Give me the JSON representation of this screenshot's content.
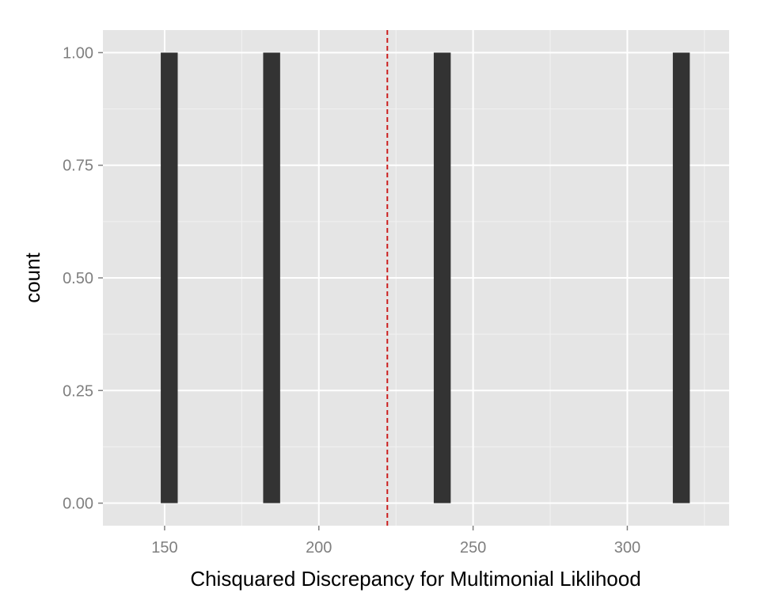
{
  "chart_data": {
    "type": "bar",
    "title": "",
    "xlabel": "Chisquared Discrepancy for Multimonial Liklihood",
    "ylabel": "count",
    "xlim": [
      130,
      333
    ],
    "ylim": [
      -0.05,
      1.05
    ],
    "bar_width": 5.5,
    "x_ticks": [
      150,
      200,
      250,
      300
    ],
    "x_tick_labels": [
      "150",
      "200",
      "250",
      "300"
    ],
    "y_ticks": [
      0,
      0.25,
      0.5,
      0.75,
      1.0
    ],
    "y_tick_labels": [
      "0.00",
      "0.25",
      "0.50",
      "0.75",
      "1.00"
    ],
    "bars": [
      {
        "x": 151.5,
        "count": 1
      },
      {
        "x": 184.7,
        "count": 1
      },
      {
        "x": 240.0,
        "count": 1
      },
      {
        "x": 317.5,
        "count": 1
      }
    ],
    "reference_line": {
      "x": 222.2,
      "style": "dashed",
      "color": "#cc1f1f"
    },
    "grid": true,
    "legend": "none",
    "colors": {
      "panel": "#e5e5e5",
      "bar": "#333333",
      "grid_major": "#ffffff",
      "grid_minor": "#f2f2f2"
    }
  }
}
